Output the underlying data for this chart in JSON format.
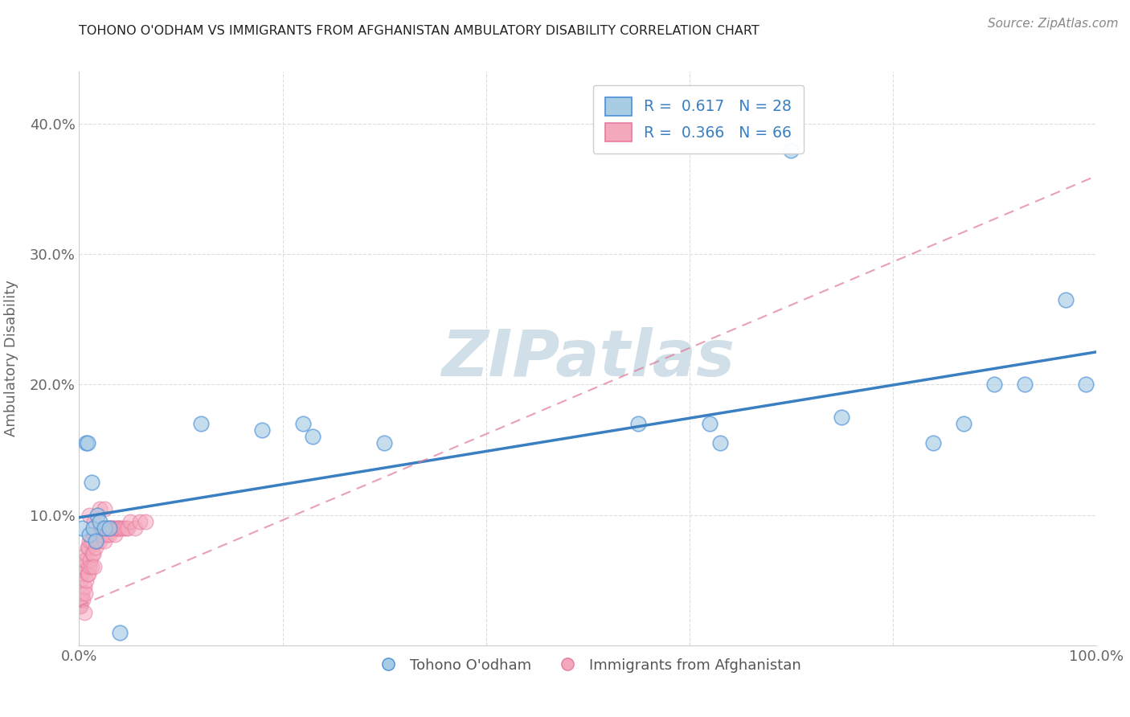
{
  "title": "TOHONO O'ODHAM VS IMMIGRANTS FROM AFGHANISTAN AMBULATORY DISABILITY CORRELATION CHART",
  "source": "Source: ZipAtlas.com",
  "ylabel": "Ambulatory Disability",
  "xlim": [
    0,
    1.0
  ],
  "ylim": [
    0,
    0.44
  ],
  "xticks": [
    0.0,
    0.2,
    0.4,
    0.6,
    0.8,
    1.0
  ],
  "xticklabels": [
    "0.0%",
    "",
    "",
    "",
    "",
    "100.0%"
  ],
  "yticks": [
    0.0,
    0.1,
    0.2,
    0.3,
    0.4
  ],
  "yticklabels": [
    "",
    "10.0%",
    "20.0%",
    "30.0%",
    "40.0%"
  ],
  "legend1_label": "R =  0.617   N = 28",
  "legend2_label": "R =  0.366   N = 66",
  "legend_bottom_label1": "Tohono O'odham",
  "legend_bottom_label2": "Immigrants from Afghanistan",
  "R_blue": 0.617,
  "N_blue": 28,
  "R_pink": 0.366,
  "N_pink": 66,
  "blue_color": "#a8cce4",
  "pink_color": "#f4a8bc",
  "blue_edge_color": "#4a90d9",
  "pink_edge_color": "#e87aa0",
  "blue_line_color": "#3a7fc1",
  "pink_line_color": "#e07898",
  "watermark_color": "#d0dfe8",
  "blue_scatter_x": [
    0.003,
    0.007,
    0.008,
    0.01,
    0.012,
    0.014,
    0.016,
    0.018,
    0.02,
    0.025,
    0.03,
    0.04,
    0.12,
    0.18,
    0.22,
    0.23,
    0.3,
    0.55,
    0.62,
    0.63,
    0.7,
    0.75,
    0.84,
    0.87,
    0.9,
    0.93,
    0.97,
    0.99
  ],
  "blue_scatter_y": [
    0.09,
    0.155,
    0.155,
    0.085,
    0.125,
    0.09,
    0.08,
    0.1,
    0.095,
    0.09,
    0.09,
    0.01,
    0.17,
    0.165,
    0.17,
    0.16,
    0.155,
    0.17,
    0.17,
    0.155,
    0.38,
    0.175,
    0.155,
    0.17,
    0.2,
    0.2,
    0.265,
    0.2
  ],
  "pink_scatter_x": [
    0.0005,
    0.001,
    0.001,
    0.002,
    0.002,
    0.003,
    0.003,
    0.004,
    0.004,
    0.005,
    0.005,
    0.006,
    0.006,
    0.007,
    0.007,
    0.008,
    0.008,
    0.009,
    0.009,
    0.01,
    0.01,
    0.011,
    0.012,
    0.012,
    0.013,
    0.014,
    0.015,
    0.015,
    0.016,
    0.017,
    0.018,
    0.019,
    0.02,
    0.021,
    0.022,
    0.023,
    0.024,
    0.025,
    0.026,
    0.027,
    0.028,
    0.029,
    0.03,
    0.031,
    0.032,
    0.033,
    0.034,
    0.035,
    0.036,
    0.037,
    0.038,
    0.039,
    0.04,
    0.042,
    0.044,
    0.046,
    0.048,
    0.05,
    0.055,
    0.06,
    0.065,
    0.02,
    0.025,
    0.005,
    0.01,
    0.015
  ],
  "pink_scatter_y": [
    0.03,
    0.03,
    0.05,
    0.035,
    0.055,
    0.04,
    0.06,
    0.035,
    0.06,
    0.045,
    0.065,
    0.04,
    0.065,
    0.05,
    0.07,
    0.055,
    0.075,
    0.055,
    0.075,
    0.06,
    0.08,
    0.065,
    0.06,
    0.08,
    0.07,
    0.07,
    0.06,
    0.085,
    0.075,
    0.08,
    0.08,
    0.085,
    0.08,
    0.09,
    0.085,
    0.09,
    0.085,
    0.08,
    0.09,
    0.085,
    0.09,
    0.09,
    0.085,
    0.09,
    0.09,
    0.09,
    0.09,
    0.085,
    0.09,
    0.09,
    0.09,
    0.09,
    0.09,
    0.09,
    0.09,
    0.09,
    0.09,
    0.095,
    0.09,
    0.095,
    0.095,
    0.105,
    0.105,
    0.025,
    0.1,
    0.095
  ],
  "blue_line_x0": 0.0,
  "blue_line_x1": 1.0,
  "blue_line_y0": 0.098,
  "blue_line_y1": 0.225,
  "pink_line_x0": 0.0,
  "pink_line_x1": 1.0,
  "pink_line_y0": 0.03,
  "pink_line_y1": 0.36
}
